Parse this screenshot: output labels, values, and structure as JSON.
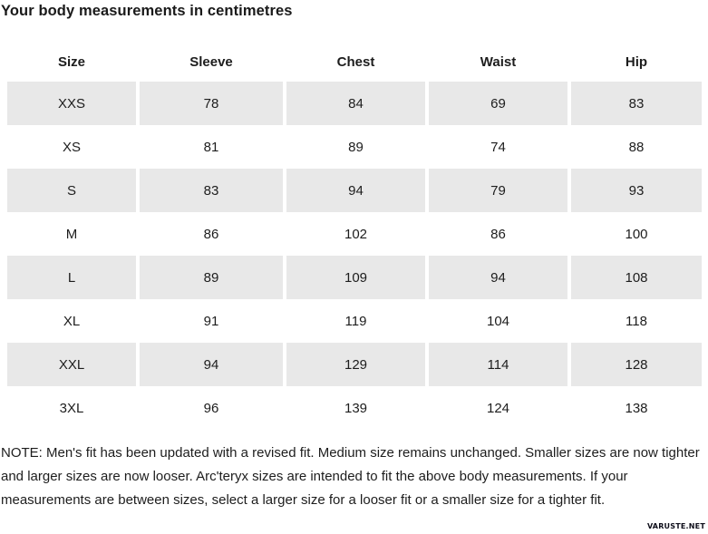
{
  "page": {
    "title": "Your body measurements in centimetres",
    "note": "NOTE: Men's fit has been updated with a revised fit. Medium size remains unchanged. Smaller sizes are now tighter and larger sizes are now looser. Arc'teryx sizes are intended to fit the above body measurements. If your measurements are between sizes, select a larger size for a looser fit or a smaller size for a tighter fit.",
    "watermark": "VARUSTE.NET"
  },
  "colors": {
    "row_shading": "#e8e8e8",
    "text": "#1d1d1d",
    "background": "#ffffff"
  },
  "table": {
    "columns": [
      "Size",
      "Sleeve",
      "Chest",
      "Waist",
      "Hip"
    ],
    "rows": [
      [
        "XXS",
        78,
        84,
        69,
        83
      ],
      [
        "XS",
        81,
        89,
        74,
        88
      ],
      [
        "S",
        83,
        94,
        79,
        93
      ],
      [
        "M",
        86,
        102,
        86,
        100
      ],
      [
        "L",
        89,
        109,
        94,
        108
      ],
      [
        "XL",
        91,
        119,
        104,
        118
      ],
      [
        "XXL",
        94,
        129,
        114,
        128
      ],
      [
        "3XL",
        96,
        139,
        124,
        138
      ]
    ]
  }
}
